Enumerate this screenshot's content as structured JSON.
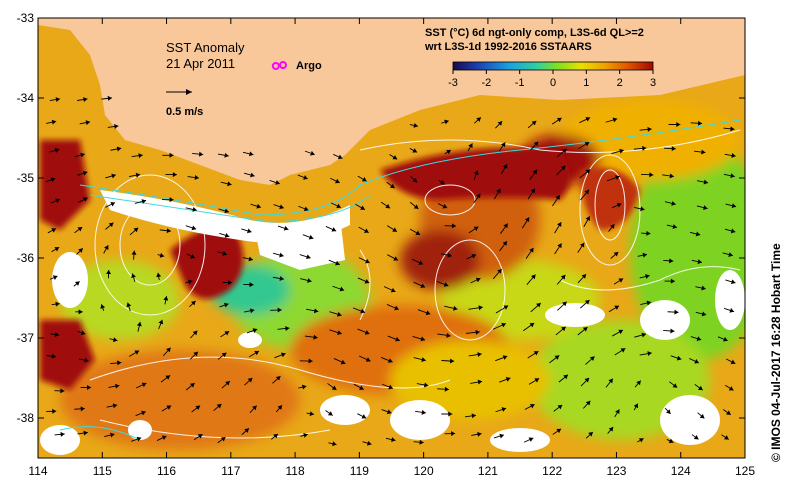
{
  "header": {
    "line1": "SST (°C) 6d ngt-only comp, L3S-6d QL>=2",
    "line2": "wrt L3S-1d 1992-2016 SSTAARS"
  },
  "titles": {
    "main": "SST Anomaly",
    "date": "21 Apr 2011",
    "argo": "Argo",
    "scale": "0.5 m/s"
  },
  "credit": "© IMOS 04-Jul-2017 16:28 Hobart Time",
  "chart_data": {
    "type": "heatmap",
    "title": "SST Anomaly",
    "subtitle": "21 Apr 2011",
    "xlabel": "",
    "ylabel": "",
    "xlim": [
      114,
      125
    ],
    "ylim": [
      -38.5,
      -33
    ],
    "xticks": [
      "114",
      "115",
      "116",
      "117",
      "118",
      "119",
      "120",
      "121",
      "122",
      "123",
      "124",
      "125"
    ],
    "yticks": [
      "-33",
      "-34",
      "-35",
      "-36",
      "-37",
      "-38"
    ],
    "colorbar": {
      "ticks": [
        "-3",
        "-2",
        "-1",
        "0",
        "1",
        "2",
        "3"
      ],
      "range": [
        -3,
        3
      ],
      "colors": [
        "#1a0a4a",
        "#1c3fb0",
        "#1aa0e0",
        "#2fd0a0",
        "#7ee020",
        "#e8e000",
        "#f0a000",
        "#e05000",
        "#a00a00"
      ]
    },
    "colors": {
      "land": "#f8c89a",
      "cold": "#7ed320",
      "mild": "#e8c000",
      "warm": "#e07010",
      "hot": "#a01008",
      "nodata": "#ffffff",
      "argo": "#ff00ff"
    },
    "anomaly_patches": [
      {
        "lon": 116.4,
        "lat": -36.1,
        "value": 3
      },
      {
        "lon": 121.8,
        "lat": -35.0,
        "value": 3
      },
      {
        "lon": 120.5,
        "lat": -35.6,
        "value": 2.5
      },
      {
        "lon": 114.3,
        "lat": -37.3,
        "value": 3
      },
      {
        "lon": 115.0,
        "lat": -34.8,
        "value": 2.8
      },
      {
        "lon": 117.2,
        "lat": -36.7,
        "value": 0.3
      },
      {
        "lon": 115.5,
        "lat": -37.2,
        "value": 0.8
      },
      {
        "lon": 124.3,
        "lat": -35.8,
        "value": 0.5
      },
      {
        "lon": 121.5,
        "lat": -36.3,
        "value": 1.5
      },
      {
        "lon": 119.5,
        "lat": -37.7,
        "value": 1.8
      },
      {
        "lon": 123.0,
        "lat": -37.3,
        "value": 1.0
      },
      {
        "lon": 116.2,
        "lat": -38.0,
        "value": 2.0
      }
    ],
    "argo_floats": [
      {
        "lon": 117.7,
        "lat": -33.6
      }
    ]
  }
}
